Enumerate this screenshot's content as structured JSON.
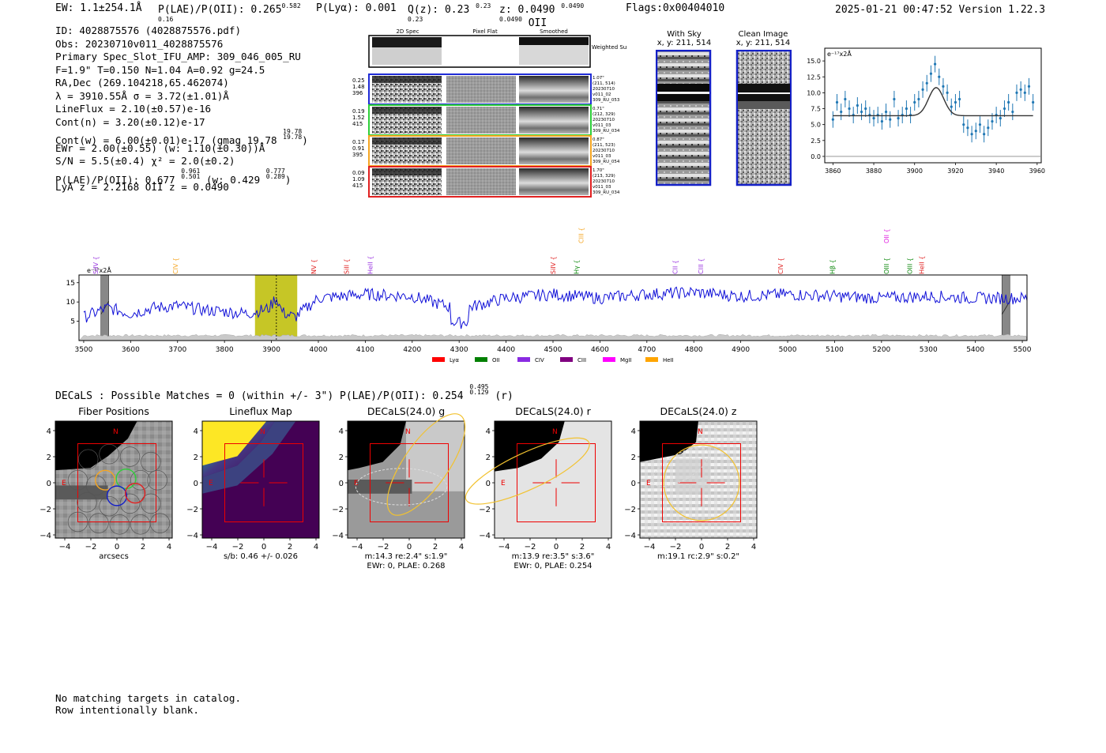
{
  "header": {
    "ew": "EW: 1.1±254.1Å",
    "plae": "P(LAE)/P(OII): 0.265",
    "plae_hi": "0.582",
    "plae_lo": "0.16",
    "plya": "P(Lyα): 0.001",
    "qz": "Q(z): 0.23",
    "qz_hi": "0.23",
    "qz_lo": "0.23",
    "z": "z: 0.0490",
    "z_hi": "0.0490",
    "z_lo": "0.0490",
    "z_line": "OII",
    "flags": "Flags:0x00404010",
    "timestamp": "2025-01-21 00:47:52",
    "version": "Version 1.22.3"
  },
  "info": {
    "id": "ID: 4028875576 (4028875576.pdf)",
    "obs": "Obs: 20230710v011_4028875576",
    "primary": "Primary Spec_Slot_IFU_AMP: 309_046_005_RU",
    "params": "F=1.9\"  T=0.150  N=1.04  A=0.92  g=24.5",
    "radec": "RA,Dec (269.104218,65.462074)",
    "lambda": "λ = 3910.55Å   σ = 3.72(±1.01)Å",
    "lineflux": "LineFlux = 2.10(±0.57)e-16",
    "contn": "Cont(n) = 3.20(±0.12)e-17",
    "contw": "Cont(w) = 6.00(±0.01)e-17 (gmag 19.78",
    "gmag_hi": "19.78",
    "gmag_lo": "19.78",
    "ewr": "EWr = 2.00(±0.55) (w: 1.10(±0.30))Å",
    "sn": "S/N = 5.5(±0.4)  χ² = 2.0(±0.2)",
    "plae": "P(LAE)/P(OII): 0.677",
    "plae_hi": "0.961",
    "plae_lo": "0.501",
    "plae_w": "(w: 0.429",
    "plae_w_hi": "0.777",
    "plae_w_lo": "0.289",
    "lyaz": "LyA z = 2.2168   OII z = 0.0490"
  },
  "cutouts": {
    "col_headers": [
      "2D Spec",
      "Pixel Flat",
      "Smoothed"
    ],
    "weighted_sum": "Weighted Sum",
    "rows": [
      {
        "left": [
          "0.25",
          "1.48",
          "396"
        ],
        "right": [
          "1.07\"",
          "(211, 514)",
          "20230710",
          "v011_02",
          "309_RU_053"
        ],
        "color": "#1f2bd6"
      },
      {
        "left": [
          "0.19",
          "1.52",
          "415"
        ],
        "right": [
          "0.71\"",
          "(212, 329)",
          "20230710",
          "v011_03",
          "309_RU_034"
        ],
        "color": "#2fcf3a"
      },
      {
        "left": [
          "0.17",
          "0.91",
          "395"
        ],
        "right": [
          "0.87\"",
          "(211, 523)",
          "20230710",
          "v011_03",
          "309_RU_054"
        ],
        "color": "#f5a623"
      },
      {
        "left": [
          "0.09",
          "1.09",
          "415"
        ],
        "right": [
          "1.70\"",
          "(213, 329)",
          "20230710",
          "v011_03",
          "309_RU_034"
        ],
        "color": "#e02020"
      }
    ]
  },
  "sky": {
    "with_sky": "With Sky",
    "with_sky_xy": "x, y: 211, 514",
    "clean": "Clean Image",
    "clean_xy": "x, y: 211, 514"
  },
  "zoom_plot": {
    "units": "e⁻¹⁷x2Å",
    "xticks": [
      "3860",
      "3880",
      "3900",
      "3920",
      "3940",
      "3960"
    ],
    "yticks": [
      "0.0",
      "2.5",
      "5.0",
      "7.5",
      "10.0",
      "12.5",
      "15.0"
    ]
  },
  "spectrum": {
    "units": "e⁻¹⁷x2Å",
    "yticks": [
      "5",
      "10",
      "15"
    ],
    "xticks": [
      "3500",
      "3600",
      "3700",
      "3800",
      "3900",
      "4000",
      "4100",
      "4200",
      "4300",
      "4400",
      "4500",
      "4600",
      "4700",
      "4800",
      "4900",
      "5000",
      "5100",
      "5200",
      "5300",
      "5400",
      "5500"
    ],
    "lines": [
      {
        "name": "SiIV",
        "color": "#9a36e0",
        "tier": "low"
      },
      {
        "name": "CIV",
        "color": "#f5a623",
        "tier": "low"
      },
      {
        "name": "NV",
        "color": "#e02020",
        "tier": "low"
      },
      {
        "name": "SiII",
        "color": "#e02020",
        "tier": "low"
      },
      {
        "name": "HeII",
        "color": "#9a36e0",
        "tier": "low"
      },
      {
        "name": "SiIV",
        "color": "#e02020",
        "tier": "low"
      },
      {
        "name": "CIII",
        "color": "#f5a623",
        "tier": "high"
      },
      {
        "name": "Hγ",
        "color": "#108a10",
        "tier": "low"
      },
      {
        "name": "CII",
        "color": "#9a36e0",
        "tier": "low"
      },
      {
        "name": "CIII",
        "color": "#9a36e0",
        "tier": "low"
      },
      {
        "name": "CIV",
        "color": "#e02020",
        "tier": "low"
      },
      {
        "name": "Hβ",
        "color": "#108a10",
        "tier": "low"
      },
      {
        "name": "OII",
        "color": "#e020e0",
        "tier": "high"
      },
      {
        "name": "OIII",
        "color": "#108a10",
        "tier": "low"
      },
      {
        "name": "OIII",
        "color": "#108a10",
        "tier": "low"
      },
      {
        "name": "HeII",
        "color": "#e02020",
        "tier": "low"
      }
    ],
    "legend": [
      {
        "name": "Lyα",
        "color": "#ff0000"
      },
      {
        "name": "OII",
        "color": "#008000"
      },
      {
        "name": "CIV",
        "color": "#8a2be2"
      },
      {
        "name": "CIII",
        "color": "#800080"
      },
      {
        "name": "MgII",
        "color": "#ff00ff"
      },
      {
        "name": "HeII",
        "color": "#ffa500"
      }
    ]
  },
  "decals": {
    "summary": "DECaLS : Possible Matches = 0 (within +/- 3\")  P(LAE)/P(OII): 0.254",
    "summary_hi": "0.495",
    "summary_lo": "0.129",
    "summary_band": "(r)",
    "panels": [
      {
        "title": "Fiber Positions",
        "caption1": "arcsecs",
        "caption2": ""
      },
      {
        "title": "Lineflux Map",
        "caption1": "s/b: 0.46 +/- 0.026",
        "caption2": ""
      },
      {
        "title": "DECaLS(24.0) g",
        "caption1": "m:14.3  re:2.4\"  s:1.9\"",
        "caption2": "EWr: 0, PLAE: 0.268"
      },
      {
        "title": "DECaLS(24.0) r",
        "caption1": "m:13.9  re:3.5\"  s:3.6\"",
        "caption2": "EWr: 0, PLAE: 0.254"
      },
      {
        "title": "DECaLS(24.0) z",
        "caption1": "m:19.1 rc:2.9\"  s:0.2\"",
        "caption2": ""
      }
    ],
    "ticks": [
      "4",
      "2",
      "0",
      "−2",
      "−4"
    ],
    "n_label": "N",
    "e_label": "E"
  },
  "footer": {
    "line1": "No matching targets in catalog.",
    "line2": "Row intentionally blank."
  },
  "chart_data": [
    {
      "type": "line",
      "title": "",
      "xlabel": "",
      "ylabel": "e-17 x2Å",
      "xlim": [
        3490,
        5510
      ],
      "ylim": [
        0,
        17
      ],
      "highlight_range": [
        3865,
        3955
      ],
      "line_marker": 3910.55,
      "gaps": [
        3545,
        5465
      ],
      "x": [
        3500,
        3550,
        3600,
        3650,
        3700,
        3750,
        3800,
        3850,
        3900,
        3950,
        4000,
        4100,
        4200,
        4300,
        4400,
        4500,
        4600,
        4700,
        4800,
        4900,
        5000,
        5100,
        5200,
        5300,
        5400,
        5500
      ],
      "values": [
        6,
        8.5,
        7,
        8.5,
        9,
        8,
        7.5,
        7,
        8.5,
        6,
        11,
        12,
        11.5,
        8,
        11,
        12,
        11,
        12,
        12.5,
        11.5,
        12,
        11.5,
        11,
        11.5,
        11,
        11
      ],
      "line_labels_wavelength": [
        3530,
        3700,
        3995,
        4065,
        4115,
        4505,
        4565,
        4555,
        4765,
        4820,
        4990,
        5100,
        5215,
        5215,
        5265,
        5290
      ]
    },
    {
      "type": "scatter",
      "title": "",
      "xlabel": "",
      "ylabel": "e-17 x2Å",
      "xlim": [
        3856,
        3962
      ],
      "ylim": [
        -1,
        17
      ],
      "x": [
        3860,
        3862,
        3864,
        3866,
        3868,
        3870,
        3872,
        3874,
        3876,
        3878,
        3880,
        3882,
        3884,
        3886,
        3888,
        3890,
        3892,
        3894,
        3896,
        3898,
        3900,
        3902,
        3904,
        3906,
        3908,
        3910,
        3912,
        3914,
        3916,
        3918,
        3920,
        3922,
        3924,
        3926,
        3928,
        3930,
        3932,
        3934,
        3936,
        3938,
        3940,
        3942,
        3944,
        3946,
        3948,
        3950,
        3952,
        3954,
        3956,
        3958
      ],
      "values": [
        5.8,
        8.5,
        7,
        9,
        7.5,
        6.5,
        8,
        7,
        7.5,
        6.5,
        6,
        6.5,
        5.5,
        7,
        5.8,
        9,
        6,
        6.5,
        7.5,
        6.5,
        8.5,
        9,
        10.5,
        11.5,
        13,
        14.5,
        12.5,
        11,
        10,
        7.8,
        8.5,
        9,
        5,
        4.5,
        3.5,
        4,
        5,
        3.5,
        4.5,
        5.5,
        6.5,
        6,
        7.5,
        8.5,
        7,
        10,
        10.5,
        10,
        11,
        8.5
      ],
      "fit": {
        "continuum": 6.4,
        "peak": 10.8,
        "center": 3910.55,
        "sigma": 3.72
      }
    }
  ]
}
